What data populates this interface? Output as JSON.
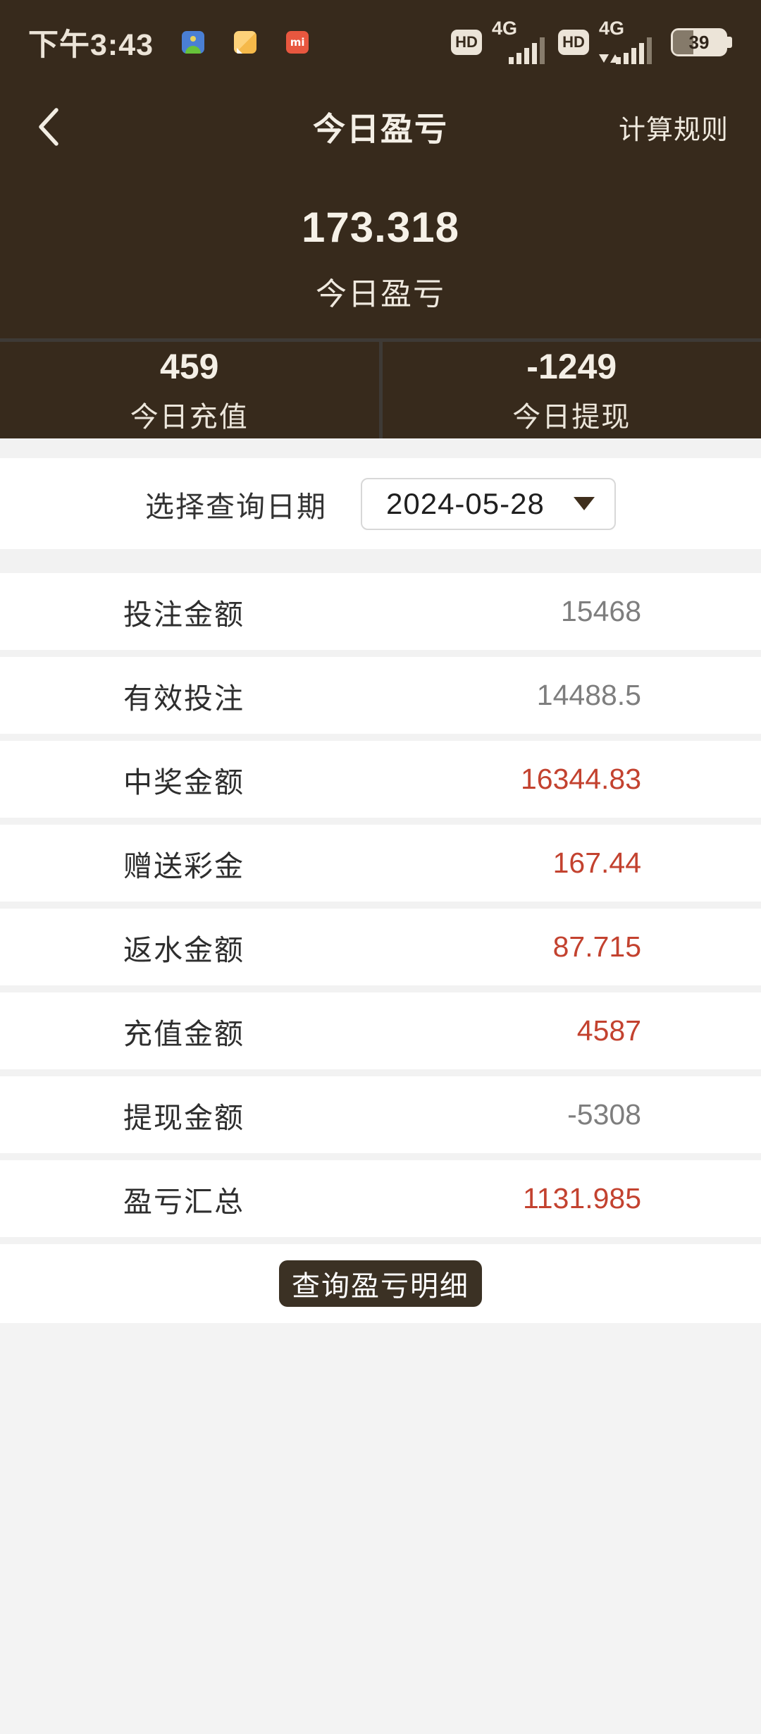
{
  "colors": {
    "header_bg": "#372a1c",
    "section_divider": "#3e3a36",
    "accent_red": "#c3422f",
    "value_gray": "#7e7e7e",
    "button_bg": "#3b3124",
    "page_gray": "#f2f2f2"
  },
  "status_bar": {
    "time": "下午3:43",
    "hd_label": "HD",
    "network_label": "4G",
    "battery_percent": "39",
    "app_icons": [
      "android-icon",
      "notes-icon",
      "mi-icon"
    ]
  },
  "nav": {
    "title": "今日盈亏",
    "action": "计算规则"
  },
  "hero": {
    "value": "173.318",
    "label": "今日盈亏"
  },
  "summary": [
    {
      "value": "459",
      "label": "今日充值"
    },
    {
      "value": "-1249",
      "label": "今日提现"
    }
  ],
  "date_picker": {
    "label": "选择查询日期",
    "value": "2024-05-28"
  },
  "rows": [
    {
      "label": "投注金额",
      "value": "15468",
      "color": "gray"
    },
    {
      "label": "有效投注",
      "value": "14488.5",
      "color": "gray"
    },
    {
      "label": "中奖金额",
      "value": "16344.83",
      "color": "red"
    },
    {
      "label": "赠送彩金",
      "value": "167.44",
      "color": "red"
    },
    {
      "label": "返水金额",
      "value": "87.715",
      "color": "red"
    },
    {
      "label": "充值金额",
      "value": "4587",
      "color": "red"
    },
    {
      "label": "提现金额",
      "value": "-5308",
      "color": "gray"
    },
    {
      "label": "盈亏汇总",
      "value": "1131.985",
      "color": "red"
    }
  ],
  "button": {
    "label": "查询盈亏明细"
  }
}
